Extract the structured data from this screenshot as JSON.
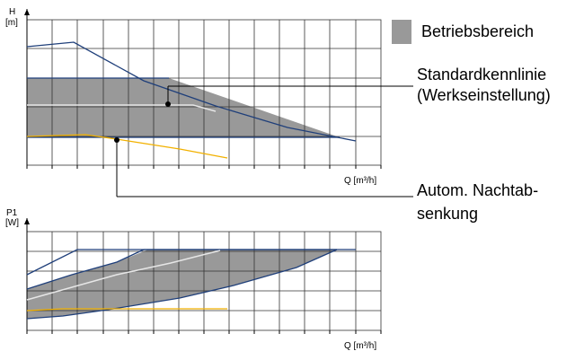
{
  "top_chart": {
    "y_label_1": "H",
    "y_label_2": "[m]",
    "x_label": "Q [m³/h]"
  },
  "bottom_chart": {
    "y_label_1": "P1",
    "y_label_2": "[W]",
    "x_label": "Q [m³/h]"
  },
  "legend": {
    "label": "Betriebsbereich",
    "swatch_color": "#999999"
  },
  "callouts": {
    "standard_line1": "Standardkennlinie",
    "standard_line2": "(Werkseinstellung)",
    "night_line1": "Autom. Nachtab-",
    "night_line2": "senkung"
  },
  "colors": {
    "operating_area": "#999999",
    "max_curve": "#1f3f7a",
    "standard_curve": "#e6e6e6",
    "night_curve": "#f2b100",
    "grid": "#333333"
  }
}
